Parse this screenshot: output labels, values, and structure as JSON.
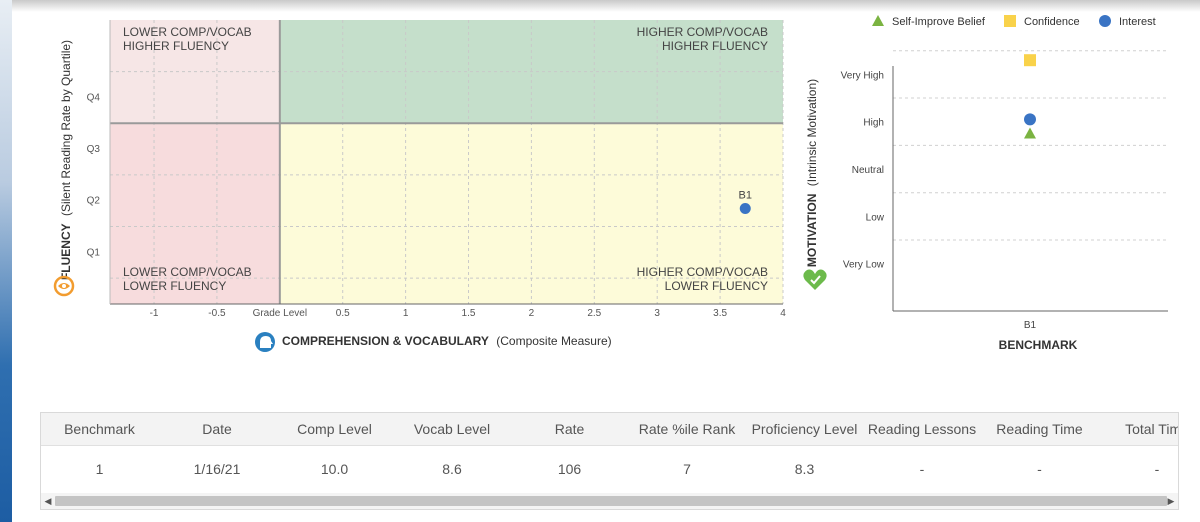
{
  "colors": {
    "green_zone": "#c5dfcb",
    "yellow_zone": "#fdfbd9",
    "pink_zone": "#f7dcdd",
    "light_pink_zone": "#f6e6e6",
    "marker_blue": "#3a74c4",
    "marker_yellow": "#f9d24a",
    "marker_green": "#7bb341",
    "fluency_icon": "#f29c2f",
    "comp_icon": "#2a80c0",
    "motivation_icon": "#6cba4b"
  },
  "quadrant_chart": {
    "y_axis_label_bold": "FLUENCY",
    "y_axis_label_rest": "(Silent Reading Rate by Quartile)",
    "x_axis_label_bold": "COMPREHENSION & VOCABULARY",
    "x_axis_label_rest": "(Composite Measure)",
    "quadrants": {
      "top_left_line1": "LOWER COMP/VOCAB",
      "top_left_line2": "HIGHER FLUENCY",
      "top_right_line1": "HIGHER COMP/VOCAB",
      "top_right_line2": "HIGHER FLUENCY",
      "bottom_left_line1": "LOWER COMP/VOCAB",
      "bottom_left_line2": "LOWER FLUENCY",
      "bottom_right_line1": "HIGHER COMP/VOCAB",
      "bottom_right_line2": "LOWER FLUENCY"
    }
  },
  "motivation_chart": {
    "y_axis_label_bold": "MOTIVATION",
    "y_axis_label_rest": "(Intrinsic Motivation)",
    "x_axis_label": "BENCHMARK",
    "legend": [
      {
        "name": "Self-Improve Belief",
        "shape": "triangle",
        "color": "#7bb341"
      },
      {
        "name": "Confidence",
        "shape": "square",
        "color": "#f9d24a"
      },
      {
        "name": "Interest",
        "shape": "circle",
        "color": "#3a74c4"
      }
    ]
  },
  "chart_data": [
    {
      "type": "scatter",
      "title": "",
      "xlabel": "COMPREHENSION & VOCABULARY (Composite Measure)",
      "ylabel": "FLUENCY (Silent Reading Rate by Quartile)",
      "x_ticks": [
        "-1",
        "-0.5",
        "Grade Level",
        "0.5",
        "1",
        "1.5",
        "2",
        "2.5",
        "3",
        "3.5",
        "4"
      ],
      "xlim": [
        -1.35,
        4
      ],
      "y_ticks": [
        "Q1",
        "Q2",
        "Q3",
        "Q4"
      ],
      "ylim": [
        0,
        5.5
      ],
      "grid": true,
      "points": [
        {
          "label": "B1",
          "x": 3.7,
          "y": 1.85
        }
      ]
    },
    {
      "type": "scatter",
      "title": "",
      "xlabel": "BENCHMARK",
      "ylabel": "MOTIVATION (Intrinsic Motivation)",
      "categories": [
        "B1"
      ],
      "y_ticks": [
        "Very Low",
        "Low",
        "Neutral",
        "High",
        "Very High"
      ],
      "ylim": [
        0,
        5.6
      ],
      "grid": true,
      "legend_position": "top",
      "series": [
        {
          "name": "Self-Improve Belief",
          "values": [
            3.75
          ]
        },
        {
          "name": "Confidence",
          "values": [
            5.3
          ]
        },
        {
          "name": "Interest",
          "values": [
            4.05
          ]
        }
      ]
    }
  ],
  "table": {
    "headers": [
      "Benchmark",
      "Date",
      "Comp Level",
      "Vocab Level",
      "Rate",
      "Rate %ile Rank",
      "Proficiency Level",
      "Reading Lessons",
      "Reading Time",
      "Total Time"
    ],
    "rows": [
      [
        "1",
        "1/16/21",
        "10.0",
        "8.6",
        "106",
        "7",
        "8.3",
        "-",
        "-",
        "-"
      ]
    ],
    "scroll_left": "◀",
    "scroll_right": "▶"
  }
}
